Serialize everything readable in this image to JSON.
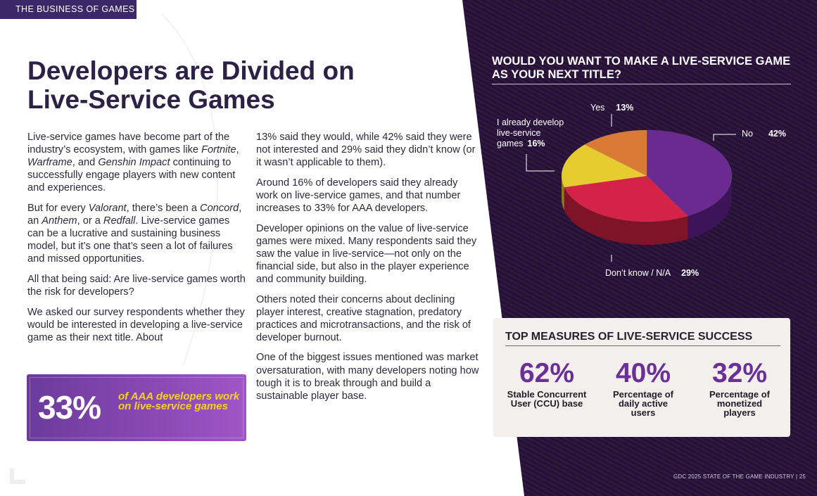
{
  "section_tag": "THE BUSINESS OF GAMES",
  "headline": "Developers are Divided on Live-Service Games",
  "column1": {
    "p1_a": "Live-service games have become part of the industry’s ecosystem, with games like ",
    "p1_game1": "Fortnite",
    "p1_sep1": ", ",
    "p1_game2": "Warframe",
    "p1_sep2": ", and ",
    "p1_game3": "Genshin Impact",
    "p1_b": " continuing to successfully engage players with new content and experiences.",
    "p2_a": "But for every ",
    "p2_game1": "Valorant",
    "p2_b": ", there’s been a ",
    "p2_game2": "Concord",
    "p2_c": ", an ",
    "p2_game3": "Anthem",
    "p2_d": ", or a ",
    "p2_game4": "Redfall",
    "p2_e": ". Live-service games can be a lucrative and sustaining business model, but it’s one that’s seen a lot of failures and missed opportunities.",
    "p3": "All that being said: Are live-service games worth the risk for developers?",
    "p4": "We asked our survey respondents whether they would be interested in developing a live-service game as their next title. About"
  },
  "column2": {
    "p1": "13% said they would, while 42% said they were not interested and 29% said they didn’t know (or it wasn’t applicable to them).",
    "p2": "Around 16% of developers said they already work on live-service games, and that number increases to 33% for AAA developers.",
    "p3": "Developer opinions on the value of live-service games were mixed. Many respondents said they saw the value in live-service—not only on the financial side, but also in the player experience and community building.",
    "p4": "Others noted their concerns about declining player interest, creative stagnation, predatory practices and microtransactions, and the risk of developer burnout.",
    "p5": "One of the biggest issues mentioned was market oversaturation, with many developers noting how tough it is to break through and build a sustainable player base."
  },
  "callout": {
    "value": "33%",
    "text": "of AAA developers work on live-service games"
  },
  "chart_data": {
    "type": "pie",
    "title": "WOULD YOU WANT TO MAKE A LIVE-SERVICE GAME AS YOUR NEXT TITLE?",
    "categories": [
      "No",
      "Don’t know / N/A",
      "I already develop live-service games",
      "Yes"
    ],
    "values": [
      42,
      29,
      16,
      13
    ],
    "value_labels": [
      "42%",
      "29%",
      "16%",
      "13%"
    ],
    "colors": [
      "#6a2a90",
      "#d42346",
      "#e6cc2e",
      "#d97a35"
    ],
    "side_colors": [
      "#3d1457",
      "#7f1428",
      "#8a7a16",
      "#8a4a1e"
    ]
  },
  "measures": {
    "title": "TOP MEASURES OF LIVE-SERVICE SUCCESS",
    "items": [
      {
        "value": "62%",
        "label": "Stable Concurrent User (CCU) base"
      },
      {
        "value": "40%",
        "label": "Percentage of daily active users"
      },
      {
        "value": "32%",
        "label": "Percentage of monetized players"
      }
    ]
  },
  "footer": "GDC 2025 STATE OF THE GAME INDUSTRY  |  25",
  "colors": {
    "dark_bg": "#2a1438",
    "accent_purple": "#6b2f98",
    "callout_yellow": "#f5cf2a"
  }
}
